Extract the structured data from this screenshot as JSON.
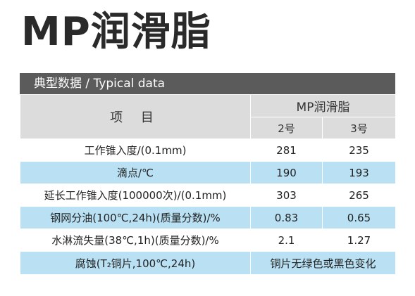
{
  "title": "MP润滑脂",
  "section": "典型数据 /  Typical data",
  "table": {
    "item_header": "项  目",
    "product_header": "MP润滑脂",
    "grades": [
      "2号",
      "3号"
    ],
    "rows": [
      {
        "label": "工作锥入度/(0.1mm)",
        "v2": "281",
        "v3": "235"
      },
      {
        "label": "滴点/℃",
        "v2": "190",
        "v3": "193"
      },
      {
        "label": "延长工作锥入度(100000次)/(0.1mm)",
        "v2": "303",
        "v3": "265"
      },
      {
        "label": "钢网分油(100℃,24h)(质量分数)/%",
        "v2": "0.83",
        "v3": "0.65"
      },
      {
        "label": "水淋流失量(38℃,1h)(质量分数)/%",
        "v2": "2.1",
        "v3": "1.27"
      },
      {
        "label": "腐蚀(T₂铜片,100℃,24h)",
        "merged": "铜片无绿色或黑色变化"
      }
    ]
  },
  "colors": {
    "header_bar": "#5b5b5b",
    "header_cell": "#dcdcdc",
    "row_alt": "#b9e1f3"
  }
}
